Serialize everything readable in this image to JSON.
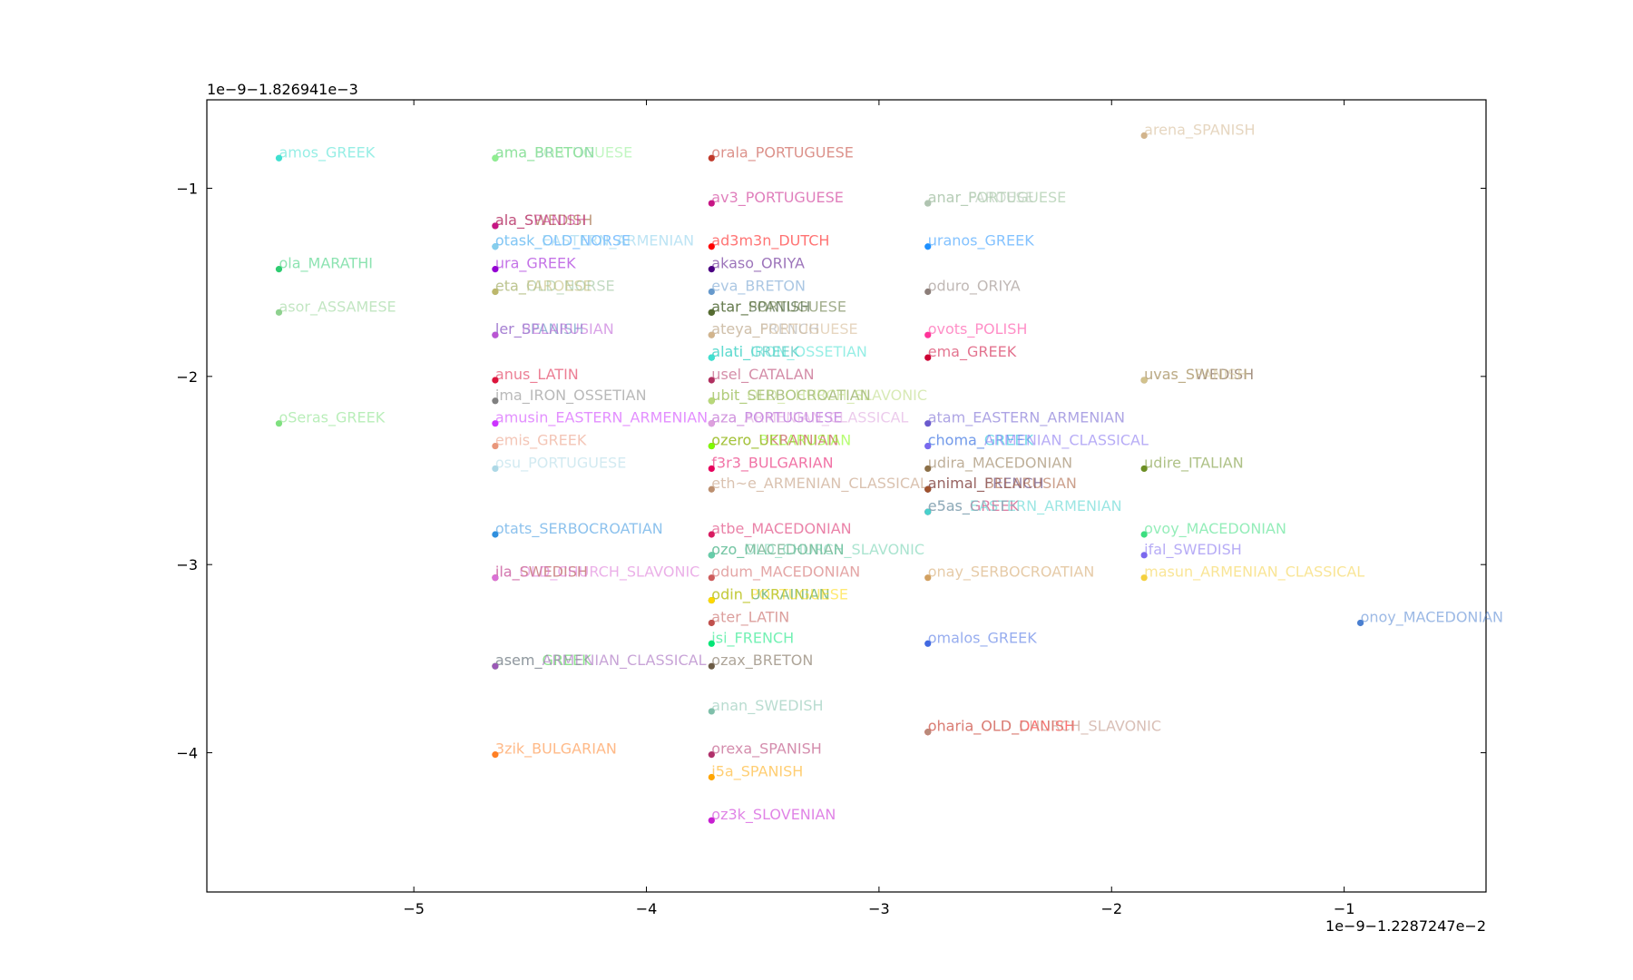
{
  "chart_data": {
    "type": "scatter",
    "title": "",
    "xlabel": "",
    "ylabel": "",
    "x_offset_label": "1e−9−1.2287247e−2",
    "y_offset_label": "1e−9−1.826941e−3",
    "xlim": [
      -5.89,
      -0.39
    ],
    "ylim": [
      -4.74,
      -0.53
    ],
    "xticks": [
      -5,
      -4,
      -3,
      -2,
      -1
    ],
    "yticks": [
      -1,
      -2,
      -3,
      -4
    ],
    "xtick_labels": [
      "−5",
      "−4",
      "−3",
      "−2",
      "−1"
    ],
    "ytick_labels": [
      "−1",
      "−2",
      "−3",
      "−4"
    ],
    "grid": false,
    "points": [
      {
        "label": "amos_GREEK",
        "x": -5.58,
        "y": -0.84,
        "color": "#40e0d0"
      },
      {
        "label": "ola_MARATHI",
        "x": -5.58,
        "y": -1.43,
        "color": "#2ecc71"
      },
      {
        "label": "asor_ASSAMESE",
        "x": -5.58,
        "y": -1.66,
        "color": "#8fd18f"
      },
      {
        "label": "oSeras_GREEK",
        "x": -5.58,
        "y": -2.25,
        "color": "#7fe07f"
      },
      {
        "label": "ama_BRETON",
        "x": -4.65,
        "y": -0.84,
        "color": "#3cb371"
      },
      {
        "label": "ama_PORTUGUESE",
        "x": -4.65,
        "y": -0.84,
        "color": "#90ee90"
      },
      {
        "label": "ala_SWEDISH",
        "x": -4.65,
        "y": -1.2,
        "color": "#8b4513"
      },
      {
        "label": "ala_SPANISH",
        "x": -4.65,
        "y": -1.2,
        "color": "#c71585"
      },
      {
        "label": "otask_OLD_NORSE",
        "x": -4.65,
        "y": -1.31,
        "color": "#1e90ff"
      },
      {
        "label": "otask_EASTERN_ARMENIAN",
        "x": -4.65,
        "y": -1.31,
        "color": "#87ceeb"
      },
      {
        "label": "ura_GREEK",
        "x": -4.65,
        "y": -1.43,
        "color": "#9400d3"
      },
      {
        "label": "eta_OLD_NORSE",
        "x": -4.65,
        "y": -1.55,
        "color": "#8fbc8f"
      },
      {
        "label": "eta_FAROESE",
        "x": -4.65,
        "y": -1.55,
        "color": "#bdb76b"
      },
      {
        "label": "ler_SPANISH",
        "x": -4.65,
        "y": -1.78,
        "color": "#4682b4"
      },
      {
        "label": "ler_BELARUSIAN",
        "x": -4.65,
        "y": -1.78,
        "color": "#ba55d3"
      },
      {
        "label": "anus_LATIN",
        "x": -4.65,
        "y": -2.02,
        "color": "#dc143c"
      },
      {
        "label": "ima_IRON_OSSETIAN",
        "x": -4.65,
        "y": -2.13,
        "color": "#808080"
      },
      {
        "label": "amusin_EASTERN_ARMENIAN",
        "x": -4.65,
        "y": -2.25,
        "color": "#cc33ff"
      },
      {
        "label": "emis_GREEK",
        "x": -4.65,
        "y": -2.37,
        "color": "#e9967a"
      },
      {
        "label": "osu_PORTUGUESE",
        "x": -4.65,
        "y": -2.49,
        "color": "#add8e6"
      },
      {
        "label": "otats_SERBOCROATIAN",
        "x": -4.65,
        "y": -2.84,
        "color": "#2f8fde"
      },
      {
        "label": "ila_SWEDISH",
        "x": -4.65,
        "y": -3.07,
        "color": "#a52a2a"
      },
      {
        "label": "ila_OLD_CHURCH_SLAVONIC",
        "x": -4.65,
        "y": -3.07,
        "color": "#da70d6"
      },
      {
        "label": "asem_GREEK",
        "x": -4.65,
        "y": -3.54,
        "color": "#32cd32"
      },
      {
        "label": "asem_ARMENIAN_CLASSICAL",
        "x": -4.65,
        "y": -3.54,
        "color": "#9b59b6"
      },
      {
        "label": "3zik_BULGARIAN",
        "x": -4.65,
        "y": -4.01,
        "color": "#ff7f24"
      },
      {
        "label": "orala_PORTUGUESE",
        "x": -3.72,
        "y": -0.84,
        "color": "#c0392b"
      },
      {
        "label": "av3_PORTUGUESE",
        "x": -3.72,
        "y": -1.08,
        "color": "#c71585"
      },
      {
        "label": "ad3m3n_DUTCH",
        "x": -3.72,
        "y": -1.31,
        "color": "#ff0000"
      },
      {
        "label": "akaso_ORIYA",
        "x": -3.72,
        "y": -1.43,
        "color": "#4b0082"
      },
      {
        "label": "eva_BRETON",
        "x": -3.72,
        "y": -1.55,
        "color": "#6699cc"
      },
      {
        "label": "atar_SPANISH",
        "x": -3.72,
        "y": -1.66,
        "color": "#1b3d0f"
      },
      {
        "label": "atar_PORTUGUESE",
        "x": -3.72,
        "y": -1.66,
        "color": "#556b2f"
      },
      {
        "label": "ateya_FRENCH",
        "x": -3.72,
        "y": -1.78,
        "color": "#a9a9a9"
      },
      {
        "label": "ateya_PORTUGUESE",
        "x": -3.72,
        "y": -1.78,
        "color": "#d2b48c"
      },
      {
        "label": "alati_GREEK",
        "x": -3.72,
        "y": -1.9,
        "color": "#20b2aa"
      },
      {
        "label": "alati_IRON_OSSETIAN",
        "x": -3.72,
        "y": -1.9,
        "color": "#40e0d0"
      },
      {
        "label": "usel_CATALAN",
        "x": -3.72,
        "y": -2.02,
        "color": "#b03060"
      },
      {
        "label": "ubit_SERBOCROATIAN",
        "x": -3.72,
        "y": -2.13,
        "color": "#6b8e23"
      },
      {
        "label": "ubit_OLD_CHURCH_SLAVONIC",
        "x": -3.72,
        "y": -2.13,
        "color": "#b8d87a"
      },
      {
        "label": "aza_PORTUGUESE",
        "x": -3.72,
        "y": -2.25,
        "color": "#9932cc"
      },
      {
        "label": "aza_ARMENIAN_CLASSICAL",
        "x": -3.72,
        "y": -2.25,
        "color": "#dda0dd"
      },
      {
        "label": "ozero_UKRAINIAN",
        "x": -3.72,
        "y": -2.37,
        "color": "#b22222"
      },
      {
        "label": "ozero_BELARUSIAN",
        "x": -3.72,
        "y": -2.37,
        "color": "#7cfc00"
      },
      {
        "label": "f3r3_BULGARIAN",
        "x": -3.72,
        "y": -2.49,
        "color": "#e6005c"
      },
      {
        "label": "eth~e_ARMENIAN_CLASSICAL",
        "x": -3.72,
        "y": -2.6,
        "color": "#bc8f6f"
      },
      {
        "label": "atbe_MACEDONIAN",
        "x": -3.72,
        "y": -2.84,
        "color": "#d81b60"
      },
      {
        "label": "ozo_MACEDONIAN",
        "x": -3.72,
        "y": -2.95,
        "color": "#2e8b57"
      },
      {
        "label": "ozo_OLD_CHURCH_SLAVONIC",
        "x": -3.72,
        "y": -2.95,
        "color": "#66cdaa"
      },
      {
        "label": "odum_MACEDONIAN",
        "x": -3.72,
        "y": -3.07,
        "color": "#cd5c5c"
      },
      {
        "label": "odin_UKRAINIAN",
        "x": -3.72,
        "y": -3.19,
        "color": "#228b22"
      },
      {
        "label": "odin_PORTUGUESE",
        "x": -3.72,
        "y": -3.19,
        "color": "#ffd700"
      },
      {
        "label": "ater_LATIN",
        "x": -3.72,
        "y": -3.31,
        "color": "#c0504d"
      },
      {
        "label": "isi_FRENCH",
        "x": -3.72,
        "y": -3.42,
        "color": "#00e676"
      },
      {
        "label": "ozax_BRETON",
        "x": -3.72,
        "y": -3.54,
        "color": "#6b5b45"
      },
      {
        "label": "anan_SWEDISH",
        "x": -3.72,
        "y": -3.78,
        "color": "#7fbfaa"
      },
      {
        "label": "orexa_SPANISH",
        "x": -3.72,
        "y": -4.01,
        "color": "#b0306a"
      },
      {
        "label": "i5a_SPANISH",
        "x": -3.72,
        "y": -4.13,
        "color": "#ffa500"
      },
      {
        "label": "oz3k_SLOVENIAN",
        "x": -3.72,
        "y": -4.36,
        "color": "#c71fd1"
      },
      {
        "label": "anar_PORTUGUESE",
        "x": -2.79,
        "y": -1.08,
        "color": "#8fbc8f"
      },
      {
        "label": "anar_FAROESE",
        "x": -2.79,
        "y": -1.08,
        "color": "#b0c4b1"
      },
      {
        "label": "uranos_GREEK",
        "x": -2.79,
        "y": -1.31,
        "color": "#1e90ff"
      },
      {
        "label": "oduro_ORIYA",
        "x": -2.79,
        "y": -1.55,
        "color": "#8c7e79"
      },
      {
        "label": "ovots_POLISH",
        "x": -2.79,
        "y": -1.78,
        "color": "#ff3399"
      },
      {
        "label": "ema_GREEK",
        "x": -2.79,
        "y": -1.9,
        "color": "#cc0033"
      },
      {
        "label": "atam_EASTERN_ARMENIAN",
        "x": -2.79,
        "y": -2.25,
        "color": "#6a5acd"
      },
      {
        "label": "choma_GREEK",
        "x": -2.79,
        "y": -2.37,
        "color": "#00bcd4"
      },
      {
        "label": "choma_ARMENIAN_CLASSICAL",
        "x": -2.79,
        "y": -2.37,
        "color": "#7b68ee"
      },
      {
        "label": "udira_MACEDONIAN",
        "x": -2.79,
        "y": -2.49,
        "color": "#8b6f47"
      },
      {
        "label": "animal_FRENCH",
        "x": -2.79,
        "y": -2.6,
        "color": "#3c1a5b"
      },
      {
        "label": "animal_BELARUSIAN",
        "x": -2.79,
        "y": -2.6,
        "color": "#a0522d"
      },
      {
        "label": "e5as_GREEK",
        "x": -2.79,
        "y": -2.72,
        "color": "#c2185b"
      },
      {
        "label": "e5as_EASTERN_ARMENIAN",
        "x": -2.79,
        "y": -2.72,
        "color": "#48d1cc"
      },
      {
        "label": "onay_SERBOCROATIAN",
        "x": -2.79,
        "y": -3.07,
        "color": "#d2a060"
      },
      {
        "label": "omalos_GREEK",
        "x": -2.79,
        "y": -3.42,
        "color": "#4169e1"
      },
      {
        "label": "oharia_OLD_DANISH",
        "x": -2.79,
        "y": -3.89,
        "color": "#ff0000"
      },
      {
        "label": "oharia_OLD_CHURCH_SLAVONIC",
        "x": -2.79,
        "y": -3.89,
        "color": "#b98a7a"
      },
      {
        "label": "arena_SPANISH",
        "x": -1.86,
        "y": -0.72,
        "color": "#d2b48c"
      },
      {
        "label": "uvas_SWEDISH",
        "x": -1.86,
        "y": -2.02,
        "color": "#5c3a1e"
      },
      {
        "label": "uvas_SPANISH",
        "x": -1.86,
        "y": -2.02,
        "color": "#d2c28c"
      },
      {
        "label": "udire_ITALIAN",
        "x": -1.86,
        "y": -2.49,
        "color": "#6b8e23"
      },
      {
        "label": "ovoy_MACEDONIAN",
        "x": -1.86,
        "y": -2.84,
        "color": "#3cde80"
      },
      {
        "label": "ifal_SWEDISH",
        "x": -1.86,
        "y": -2.95,
        "color": "#7b68ee"
      },
      {
        "label": "masun_ARMENIAN_CLASSICAL",
        "x": -1.86,
        "y": -3.07,
        "color": "#f4d03f"
      },
      {
        "label": "onoy_MACEDONIAN",
        "x": -0.93,
        "y": -3.31,
        "color": "#4a7fd0"
      }
    ]
  }
}
